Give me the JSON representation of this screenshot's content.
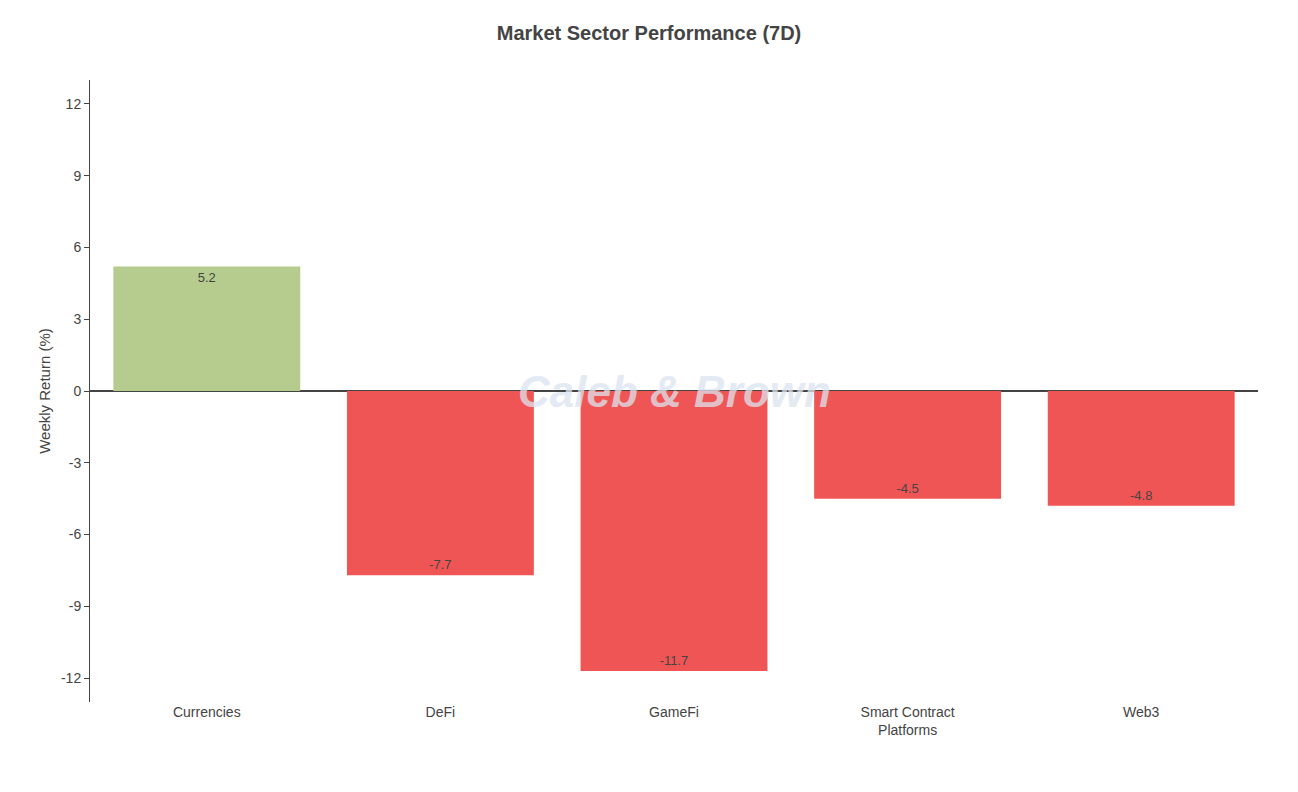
{
  "chart_data": {
    "type": "bar",
    "title": "Market Sector Performance (7D)",
    "categories": [
      "Currencies",
      "DeFi",
      "GameFi",
      "Smart Contract\nPlatforms",
      "Web3"
    ],
    "values": [
      5.2,
      -7.7,
      -11.7,
      -4.5,
      -4.8
    ],
    "colors": [
      "#b5cc8e",
      "#f05555",
      "#f05555",
      "#f05555",
      "#f05555"
    ],
    "ylabel": "Weekly Return (%)",
    "ylim": [
      -13,
      13
    ],
    "yticks": [
      -12,
      -9,
      -6,
      -3,
      0,
      3,
      6,
      9,
      12
    ],
    "grid": false,
    "data_labels": true,
    "annotations": [
      {
        "text": "Caleb & Brown",
        "color": "#dce4ef"
      }
    ]
  }
}
